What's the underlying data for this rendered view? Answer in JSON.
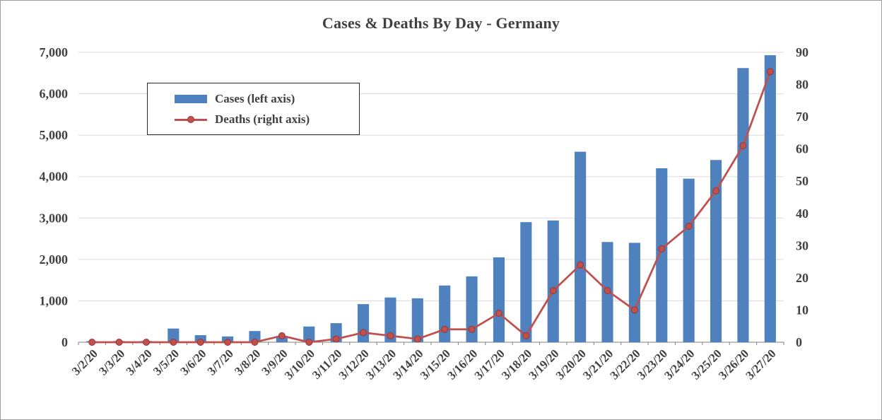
{
  "chart_data": {
    "type": "combo",
    "title": "Cases & Deaths By Day - Germany",
    "categories": [
      "3/2/20",
      "3/3/20",
      "3/4/20",
      "3/5/20",
      "3/6/20",
      "3/7/20",
      "3/8/20",
      "3/9/20",
      "3/10/20",
      "3/11/20",
      "3/12/20",
      "3/13/20",
      "3/14/20",
      "3/15/20",
      "3/16/20",
      "3/17/20",
      "3/18/20",
      "3/19/20",
      "3/20/20",
      "3/21/20",
      "3/22/20",
      "3/23/20",
      "3/24/20",
      "3/25/20",
      "3/26/20",
      "3/27/20"
    ],
    "series": [
      {
        "name": "Cases (left axis)",
        "type": "bar",
        "axis": "left",
        "color": "#4E81BD",
        "values": [
          25,
          30,
          30,
          330,
          170,
          140,
          270,
          150,
          380,
          460,
          920,
          1080,
          1060,
          1370,
          1590,
          2050,
          2900,
          2940,
          4600,
          2420,
          2400,
          4200,
          3950,
          4400,
          6620,
          6930
        ]
      },
      {
        "name": "Deaths (right axis)",
        "type": "line",
        "axis": "right",
        "color": "#C0504D",
        "marker_stroke": "#943634",
        "values": [
          0,
          0,
          0,
          0,
          0,
          0,
          0,
          2,
          0,
          1,
          3,
          2,
          1,
          4,
          4,
          9,
          2,
          16,
          24,
          16,
          10,
          29,
          36,
          47,
          61,
          84
        ]
      }
    ],
    "left_axis": {
      "min": 0,
      "max": 7000,
      "step": 1000,
      "tick_labels": [
        "0",
        "1,000",
        "2,000",
        "3,000",
        "4,000",
        "5,000",
        "6,000",
        "7,000"
      ]
    },
    "right_axis": {
      "min": 0,
      "max": 90,
      "step": 10,
      "tick_labels": [
        "0",
        "10",
        "20",
        "30",
        "40",
        "50",
        "60",
        "70",
        "80",
        "90"
      ]
    },
    "grid": true,
    "legend_position": "top-left-inside",
    "colors": {
      "bar": "#4E81BD",
      "line": "#C0504D",
      "marker_stroke": "#943634",
      "grid": "#D9D9D9",
      "axis": "#7F7F7F",
      "text": "#404040",
      "legend_border": "#262626",
      "frame_border": "#9D9D9D"
    }
  }
}
